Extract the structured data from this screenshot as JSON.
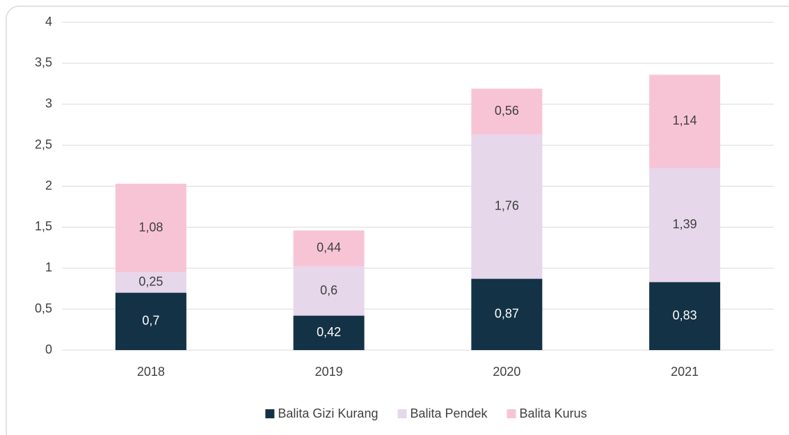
{
  "chart_data": {
    "type": "stacked_bar",
    "categories": [
      "2018",
      "2019",
      "2020",
      "2021"
    ],
    "series": [
      {
        "name": "Balita Gizi Kurang",
        "color": "#133245",
        "label_color": "#ffffff",
        "values": [
          0.7,
          0.42,
          0.87,
          0.83
        ],
        "value_labels": [
          "0,7",
          "0,42",
          "0,87",
          "0,83"
        ]
      },
      {
        "name": "Balita Pendek",
        "color": "#e6d7ea",
        "label_color": "#404040",
        "values": [
          0.25,
          0.6,
          1.76,
          1.39
        ],
        "value_labels": [
          "0,25",
          "0,6",
          "1,76",
          "1,39"
        ]
      },
      {
        "name": "Balita Kurus",
        "color": "#f7c4d6",
        "label_color": "#404040",
        "values": [
          1.08,
          0.44,
          0.56,
          1.14
        ],
        "value_labels": [
          "1,08",
          "0,44",
          "0,56",
          "1,14"
        ]
      }
    ],
    "ylim": [
      0,
      4
    ],
    "yticks": [
      0,
      {
        "value": 0.5,
        "label": "0,5"
      },
      1,
      {
        "value": 1.5,
        "label": "1,5"
      },
      2,
      {
        "value": 2.5,
        "label": "2,5"
      },
      3,
      {
        "value": 3.5,
        "label": "3,5"
      },
      4
    ],
    "grid": true,
    "legend": "bottom"
  }
}
